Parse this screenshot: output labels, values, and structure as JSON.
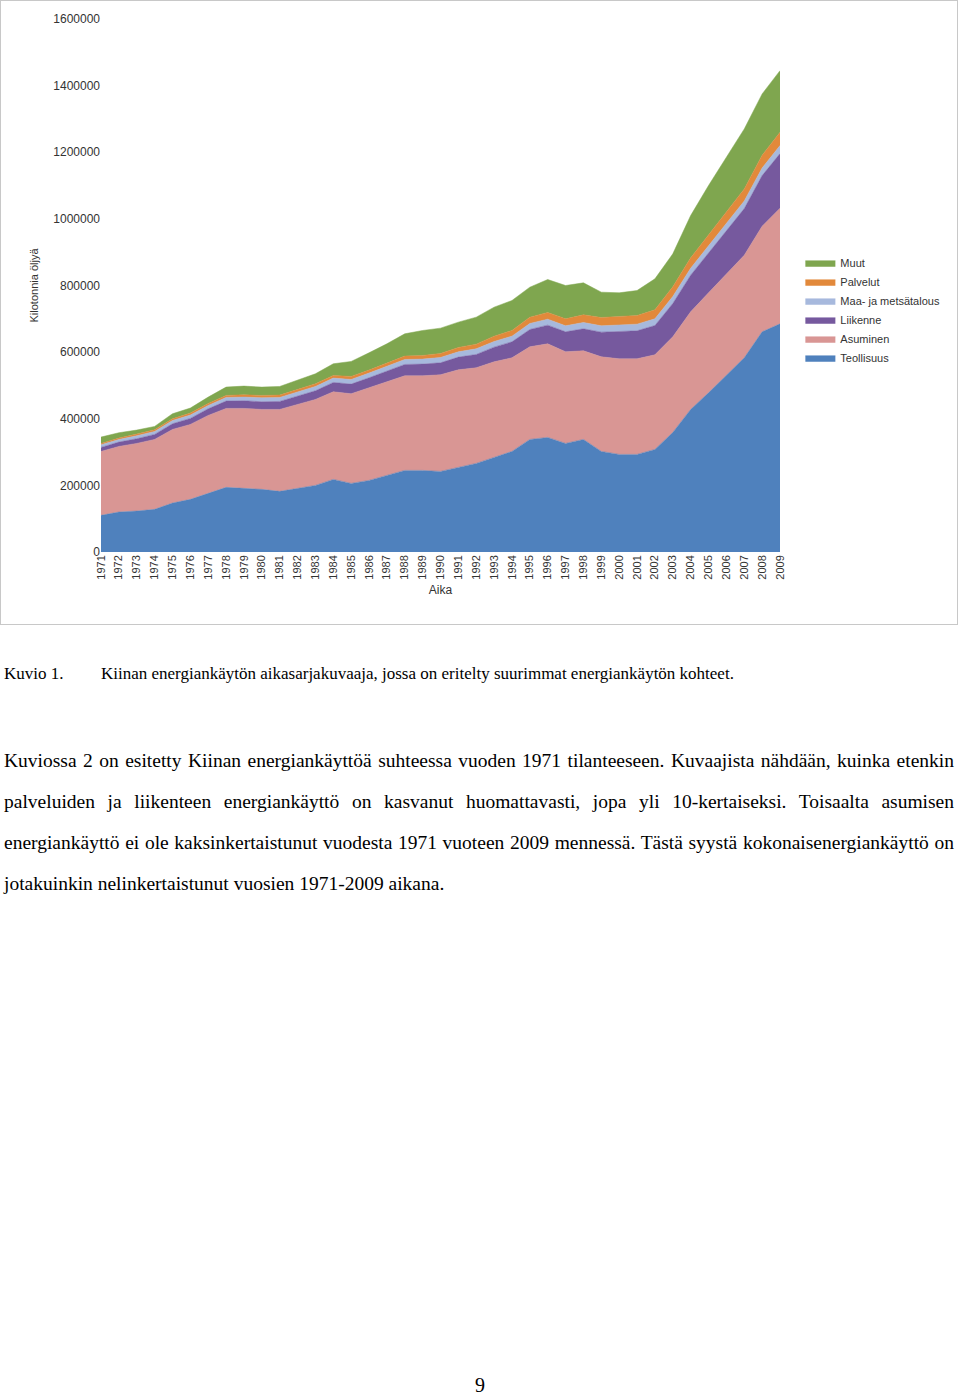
{
  "chart_data": {
    "type": "area",
    "y_label": "Kilotonnia öljyä",
    "x_label": "Aika",
    "stacked": true,
    "grid": false,
    "legend": "right",
    "ylim": [
      0,
      1600000
    ],
    "yticks": [
      0,
      200000,
      400000,
      600000,
      800000,
      1000000,
      1200000,
      1400000,
      1600000
    ],
    "categories": [
      "1971",
      "1972",
      "1973",
      "1974",
      "1975",
      "1976",
      "1977",
      "1978",
      "1979",
      "1980",
      "1981",
      "1982",
      "1983",
      "1984",
      "1985",
      "1986",
      "1987",
      "1988",
      "1989",
      "1990",
      "1991",
      "1992",
      "1993",
      "1994",
      "1995",
      "1996",
      "1997",
      "1998",
      "1999",
      "2000",
      "2001",
      "2002",
      "2003",
      "2004",
      "2005",
      "2006",
      "2007",
      "2008",
      "2009"
    ],
    "series": [
      {
        "name": "Teollisuus",
        "color": "#4f81bd",
        "values": [
          110000,
          120000,
          123000,
          128000,
          147000,
          158000,
          176000,
          194000,
          191000,
          188000,
          182000,
          191000,
          200000,
          218000,
          206000,
          215000,
          230000,
          245000,
          245000,
          242000,
          254000,
          266000,
          284000,
          302000,
          338000,
          344000,
          326000,
          338000,
          302000,
          293000,
          293000,
          308000,
          359000,
          428000,
          478000,
          529000,
          583000,
          661000,
          685000
        ]
      },
      {
        "name": "Asuminen",
        "color": "#d99694",
        "values": [
          192000,
          197000,
          203000,
          210000,
          221000,
          225000,
          234000,
          237000,
          240000,
          240000,
          246000,
          252000,
          258000,
          263000,
          269000,
          278000,
          281000,
          284000,
          284000,
          290000,
          293000,
          287000,
          287000,
          281000,
          278000,
          281000,
          275000,
          266000,
          284000,
          287000,
          287000,
          284000,
          287000,
          293000,
          300000,
          305000,
          308000,
          317000,
          347000
        ]
      },
      {
        "name": "Liikenne",
        "color": "#76599e",
        "values": [
          12000,
          13000,
          14000,
          15000,
          17000,
          18000,
          20000,
          22000,
          23000,
          23000,
          24000,
          25000,
          26000,
          28000,
          29000,
          30000,
          32000,
          34000,
          35000,
          36000,
          38000,
          40000,
          44000,
          48000,
          52000,
          56000,
          60000,
          66000,
          74000,
          82000,
          84000,
          88000,
          100000,
          110000,
          120000,
          130000,
          140000,
          152000,
          164000
        ]
      },
      {
        "name": "Maa- ja metsätalous",
        "color": "#a7b9dd",
        "values": [
          8000,
          8000,
          9000,
          9000,
          10000,
          10000,
          10000,
          11000,
          11000,
          12000,
          12000,
          12000,
          13000,
          13000,
          14000,
          14000,
          14000,
          15000,
          15000,
          16000,
          16000,
          17000,
          17000,
          17000,
          18000,
          18000,
          18000,
          19000,
          19000,
          20000,
          20000,
          20000,
          21000,
          21000,
          22000,
          22000,
          23000,
          23000,
          24000
        ]
      },
      {
        "name": "Palvelut",
        "color": "#e2893b",
        "values": [
          4000,
          4000,
          5000,
          5000,
          5000,
          6000,
          6000,
          6000,
          7000,
          7000,
          7000,
          8000,
          8000,
          8000,
          9000,
          9000,
          10000,
          10000,
          11000,
          12000,
          13000,
          14000,
          16000,
          17000,
          19000,
          20000,
          21000,
          23000,
          25000,
          26000,
          26000,
          27000,
          29000,
          31000,
          33000,
          35000,
          36000,
          38000,
          40000
        ]
      },
      {
        "name": "Muut",
        "color": "#7fa64f",
        "values": [
          19000,
          16000,
          12000,
          10000,
          15000,
          15000,
          19000,
          25000,
          26000,
          25000,
          26000,
          27000,
          30000,
          35000,
          45000,
          52000,
          58000,
          67000,
          75000,
          76000,
          76000,
          81000,
          87000,
          90000,
          90000,
          99000,
          100000,
          96000,
          76000,
          70000,
          75000,
          93000,
          99000,
          127000,
          147000,
          164000,
          180000,
          184000,
          185000
        ]
      }
    ]
  },
  "caption": {
    "label": "Kuvio 1.",
    "text": "Kiinan energiankäytön aikasarjakuvaaja, jossa on eritelty suurimmat energiankäytön kohteet."
  },
  "paragraph": "Kuviossa 2 on esitetty Kiinan energiankäyttöä suhteessa vuoden 1971 tilanteeseen. Kuvaajista nähdään, kuinka etenkin palveluiden ja liikenteen energiankäyttö on kasvanut huomattavasti, jopa yli 10-kertaiseksi. Toisaalta asumisen energiankäyttö ei ole kaksinkertaistunut vuodesta 1971 vuoteen 2009 mennessä. Tästä syystä kokonaisenergiankäyttö on jotakuinkin nelinkertaistunut vuosien 1971-2009 aikana.",
  "page_number": "9"
}
